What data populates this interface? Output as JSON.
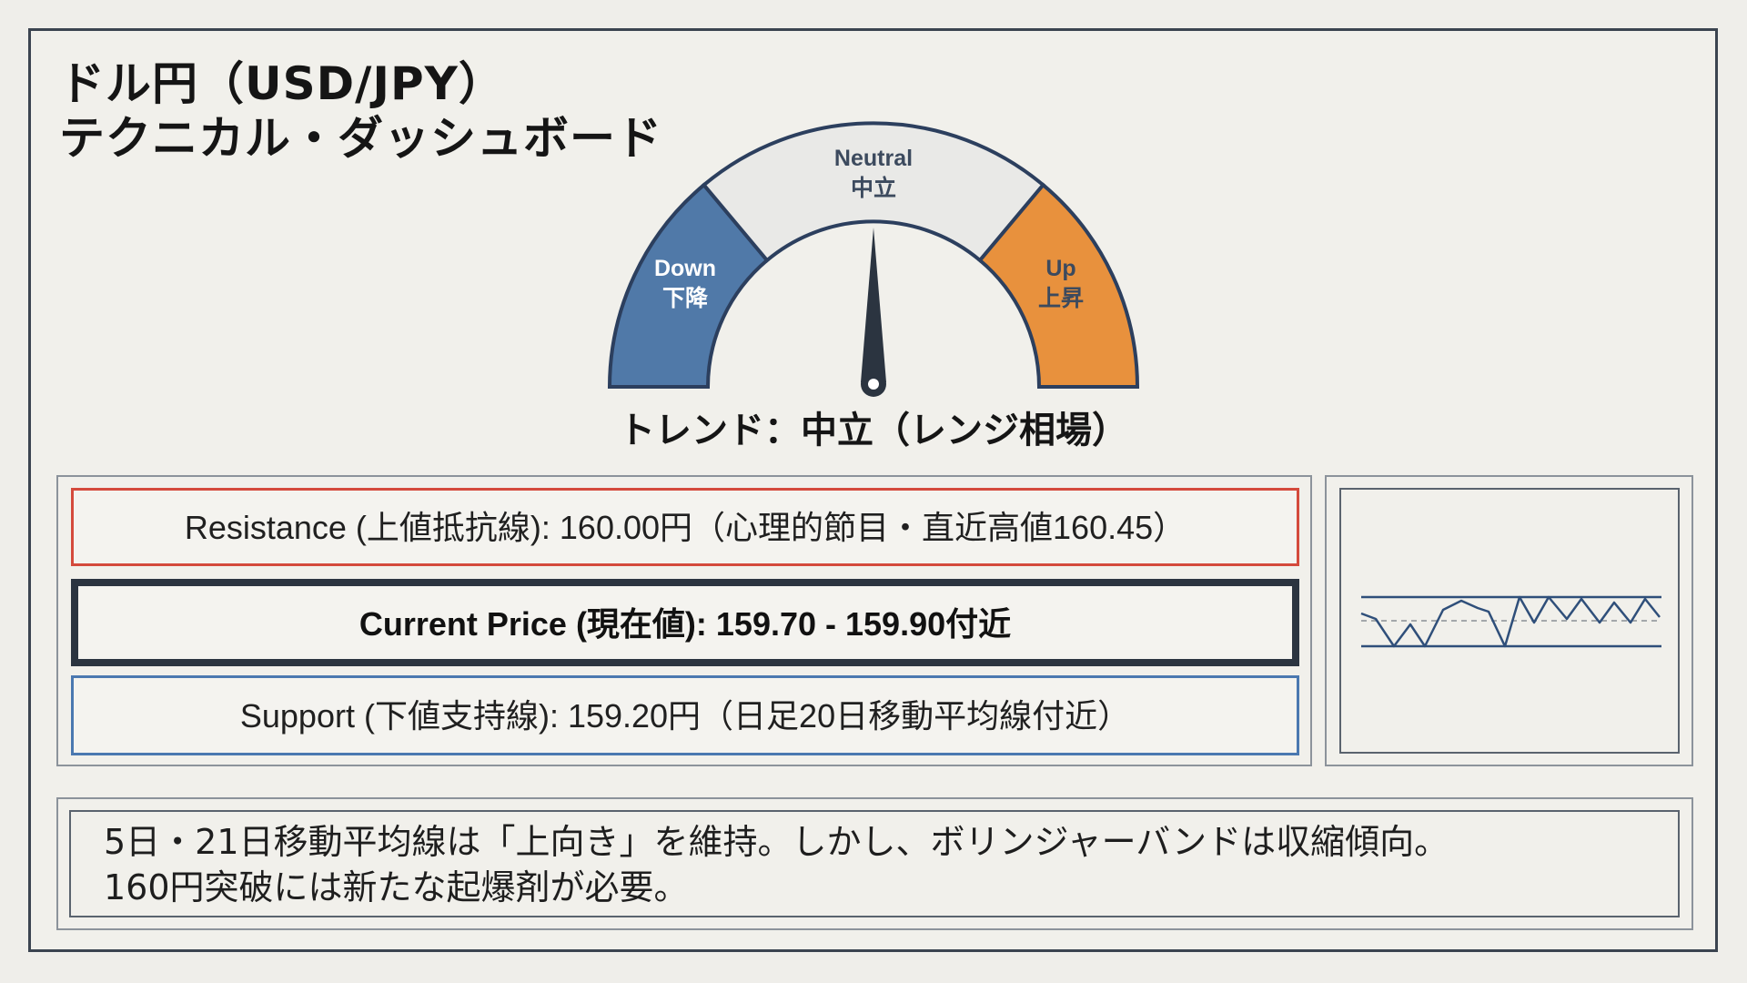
{
  "header": {
    "title_line1": "ドル円（USD/JPY）",
    "title_line2": "テクニカル・ダッシュボード"
  },
  "gauge": {
    "segments": [
      {
        "key": "down",
        "label_en": "Down",
        "label_ja": "下降",
        "color": "#5079a8"
      },
      {
        "key": "neutral",
        "label_en": "Neutral",
        "label_ja": "中立",
        "color": "#e9e9e7"
      },
      {
        "key": "up",
        "label_en": "Up",
        "label_ja": "上昇",
        "color": "#e8913d"
      }
    ],
    "needle_state": "neutral",
    "outline_color": "#2c3f5e"
  },
  "trend_label": "トレンド：中立（レンジ相場）",
  "levels": {
    "resistance": "Resistance (上値抵抗線): 160.00円（心理的節目・直近高値160.45）",
    "current": "Current Price (現在値): 159.70 - 159.90付近",
    "support": "Support (下値支持線): 159.20円（日足20日移動平均線付近）"
  },
  "note": {
    "line1": "5日・21日移動平均線は「上向き」を維持。しかし、ボリンジャーバンドは収縮傾向。",
    "line2": "160円突破には新たな起爆剤が必要。"
  },
  "colors": {
    "resistance": "#d44a3c",
    "current": "#2b3440",
    "support": "#4a78b0",
    "sparkline": "#2f4f7a"
  }
}
